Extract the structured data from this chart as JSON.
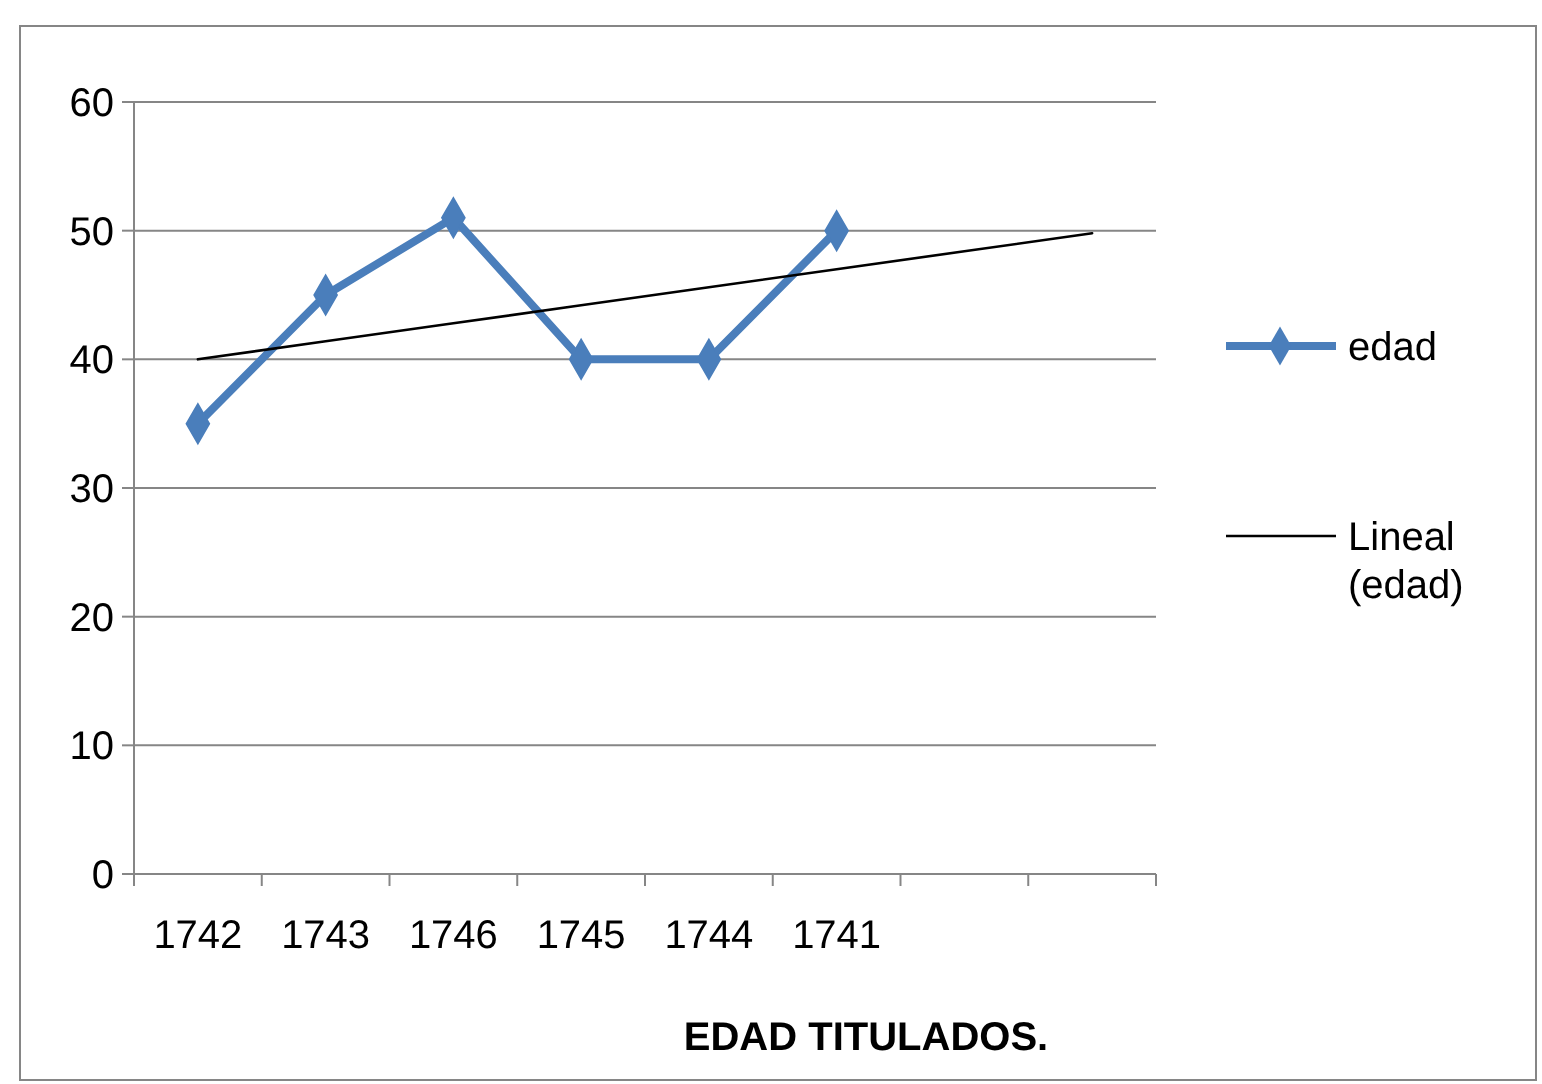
{
  "chart_data": {
    "type": "line",
    "title": "EDAD TITULADOS.",
    "categories": [
      "1742",
      "1743",
      "1746",
      "1745",
      "1744",
      "1741",
      null,
      null
    ],
    "series": [
      {
        "name": "edad",
        "color": "#4a7ebb",
        "values": [
          35,
          45,
          51,
          40,
          40,
          50,
          null,
          null
        ],
        "marker": "diamond"
      },
      {
        "name": "Lineal (edad)",
        "color": "#000000",
        "values": [
          40,
          41.4,
          42.8,
          44.2,
          45.6,
          47,
          48.4,
          49.8
        ],
        "marker": "none"
      }
    ],
    "ylim": [
      0,
      60
    ],
    "yticks": [
      0,
      10,
      20,
      30,
      40,
      50,
      60
    ],
    "grid": "y",
    "legend": "right"
  }
}
